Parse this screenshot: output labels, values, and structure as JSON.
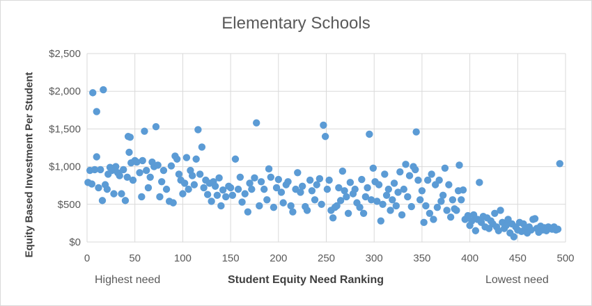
{
  "chart_data": {
    "type": "scatter",
    "title": "Elementary Schools",
    "xlabel": "Student Equity Need Ranking",
    "ylabel": "Equity Based Investment Per Student",
    "x_notes": {
      "left": "Highest need",
      "right": "Lowest need"
    },
    "xlim": [
      0,
      500
    ],
    "ylim": [
      0,
      2500
    ],
    "x_ticks": [
      0,
      50,
      100,
      150,
      200,
      250,
      300,
      350,
      400,
      450,
      500
    ],
    "y_ticks": [
      0,
      500,
      1000,
      1500,
      2000,
      2500
    ],
    "y_tick_labels": [
      "$0",
      "$500",
      "$1,000",
      "$1,500",
      "$2,000",
      "$2,500"
    ],
    "grid": "vertical-and-horizontal",
    "legend": "none",
    "marker_color": "#5b9bd5",
    "series": [
      {
        "points": [
          [
            1,
            790
          ],
          [
            3,
            950
          ],
          [
            5,
            770
          ],
          [
            6,
            1980
          ],
          [
            8,
            960
          ],
          [
            10,
            1730
          ],
          [
            10,
            1130
          ],
          [
            12,
            720
          ],
          [
            14,
            960
          ],
          [
            16,
            550
          ],
          [
            17,
            2020
          ],
          [
            19,
            760
          ],
          [
            21,
            700
          ],
          [
            22,
            900
          ],
          [
            24,
            990
          ],
          [
            26,
            950
          ],
          [
            28,
            640
          ],
          [
            30,
            1000
          ],
          [
            32,
            920
          ],
          [
            34,
            880
          ],
          [
            36,
            640
          ],
          [
            38,
            960
          ],
          [
            40,
            550
          ],
          [
            42,
            860
          ],
          [
            43,
            1400
          ],
          [
            44,
            1190
          ],
          [
            45,
            1390
          ],
          [
            46,
            1050
          ],
          [
            48,
            820
          ],
          [
            50,
            1080
          ],
          [
            52,
            1060
          ],
          [
            55,
            920
          ],
          [
            57,
            600
          ],
          [
            58,
            1080
          ],
          [
            60,
            1470
          ],
          [
            62,
            950
          ],
          [
            64,
            720
          ],
          [
            66,
            860
          ],
          [
            68,
            1060
          ],
          [
            70,
            1000
          ],
          [
            72,
            1530
          ],
          [
            74,
            1020
          ],
          [
            76,
            600
          ],
          [
            78,
            800
          ],
          [
            80,
            950
          ],
          [
            83,
            700
          ],
          [
            86,
            540
          ],
          [
            88,
            1010
          ],
          [
            90,
            520
          ],
          [
            92,
            1140
          ],
          [
            94,
            1100
          ],
          [
            96,
            900
          ],
          [
            98,
            820
          ],
          [
            100,
            640
          ],
          [
            102,
            780
          ],
          [
            104,
            1120
          ],
          [
            106,
            700
          ],
          [
            108,
            950
          ],
          [
            110,
            880
          ],
          [
            112,
            760
          ],
          [
            114,
            1100
          ],
          [
            116,
            1490
          ],
          [
            118,
            900
          ],
          [
            120,
            1260
          ],
          [
            122,
            720
          ],
          [
            124,
            820
          ],
          [
            126,
            630
          ],
          [
            128,
            780
          ],
          [
            130,
            540
          ],
          [
            132,
            800
          ],
          [
            134,
            740
          ],
          [
            136,
            620
          ],
          [
            138,
            850
          ],
          [
            140,
            480
          ],
          [
            142,
            690
          ],
          [
            145,
            600
          ],
          [
            148,
            740
          ],
          [
            150,
            720
          ],
          [
            152,
            620
          ],
          [
            155,
            1100
          ],
          [
            158,
            700
          ],
          [
            160,
            860
          ],
          [
            162,
            530
          ],
          [
            165,
            640
          ],
          [
            168,
            400
          ],
          [
            170,
            780
          ],
          [
            172,
            700
          ],
          [
            175,
            850
          ],
          [
            177,
            1580
          ],
          [
            180,
            480
          ],
          [
            182,
            800
          ],
          [
            185,
            700
          ],
          [
            188,
            560
          ],
          [
            190,
            970
          ],
          [
            192,
            860
          ],
          [
            195,
            460
          ],
          [
            198,
            720
          ],
          [
            200,
            830
          ],
          [
            203,
            660
          ],
          [
            205,
            520
          ],
          [
            208,
            760
          ],
          [
            210,
            800
          ],
          [
            213,
            480
          ],
          [
            215,
            400
          ],
          [
            218,
            700
          ],
          [
            220,
            920
          ],
          [
            223,
            660
          ],
          [
            225,
            740
          ],
          [
            228,
            470
          ],
          [
            230,
            420
          ],
          [
            233,
            820
          ],
          [
            235,
            680
          ],
          [
            238,
            560
          ],
          [
            240,
            760
          ],
          [
            243,
            840
          ],
          [
            245,
            500
          ],
          [
            247,
            1550
          ],
          [
            249,
            1400
          ],
          [
            251,
            700
          ],
          [
            253,
            820
          ],
          [
            255,
            420
          ],
          [
            257,
            320
          ],
          [
            259,
            460
          ],
          [
            261,
            480
          ],
          [
            263,
            720
          ],
          [
            265,
            550
          ],
          [
            267,
            940
          ],
          [
            269,
            680
          ],
          [
            271,
            600
          ],
          [
            273,
            380
          ],
          [
            275,
            790
          ],
          [
            278,
            640
          ],
          [
            280,
            700
          ],
          [
            282,
            520
          ],
          [
            285,
            460
          ],
          [
            287,
            830
          ],
          [
            289,
            380
          ],
          [
            291,
            600
          ],
          [
            293,
            720
          ],
          [
            295,
            1430
          ],
          [
            297,
            560
          ],
          [
            299,
            980
          ],
          [
            301,
            800
          ],
          [
            303,
            540
          ],
          [
            305,
            760
          ],
          [
            307,
            280
          ],
          [
            309,
            500
          ],
          [
            311,
            900
          ],
          [
            313,
            620
          ],
          [
            315,
            700
          ],
          [
            317,
            420
          ],
          [
            319,
            560
          ],
          [
            321,
            780
          ],
          [
            323,
            480
          ],
          [
            325,
            660
          ],
          [
            327,
            930
          ],
          [
            329,
            360
          ],
          [
            331,
            700
          ],
          [
            333,
            1030
          ],
          [
            335,
            600
          ],
          [
            337,
            880
          ],
          [
            339,
            470
          ],
          [
            341,
            1000
          ],
          [
            343,
            960
          ],
          [
            344,
            1460
          ],
          [
            346,
            820
          ],
          [
            348,
            560
          ],
          [
            350,
            680
          ],
          [
            352,
            260
          ],
          [
            354,
            480
          ],
          [
            356,
            820
          ],
          [
            358,
            380
          ],
          [
            360,
            900
          ],
          [
            362,
            300
          ],
          [
            364,
            760
          ],
          [
            366,
            460
          ],
          [
            368,
            820
          ],
          [
            370,
            540
          ],
          [
            372,
            620
          ],
          [
            374,
            980
          ],
          [
            376,
            420
          ],
          [
            378,
            760
          ],
          [
            380,
            330
          ],
          [
            382,
            560
          ],
          [
            384,
            440
          ],
          [
            386,
            420
          ],
          [
            388,
            680
          ],
          [
            389,
            1020
          ],
          [
            391,
            560
          ],
          [
            393,
            690
          ],
          [
            395,
            300
          ],
          [
            398,
            350
          ],
          [
            400,
            220
          ],
          [
            402,
            280
          ],
          [
            404,
            360
          ],
          [
            406,
            150
          ],
          [
            408,
            300
          ],
          [
            410,
            790
          ],
          [
            412,
            260
          ],
          [
            414,
            340
          ],
          [
            416,
            200
          ],
          [
            418,
            320
          ],
          [
            420,
            180
          ],
          [
            422,
            280
          ],
          [
            424,
            240
          ],
          [
            426,
            380
          ],
          [
            428,
            200
          ],
          [
            430,
            150
          ],
          [
            432,
            420
          ],
          [
            434,
            260
          ],
          [
            436,
            180
          ],
          [
            438,
            220
          ],
          [
            440,
            300
          ],
          [
            442,
            120
          ],
          [
            444,
            240
          ],
          [
            446,
            70
          ],
          [
            448,
            200
          ],
          [
            450,
            160
          ],
          [
            452,
            260
          ],
          [
            454,
            140
          ],
          [
            456,
            240
          ],
          [
            458,
            180
          ],
          [
            460,
            120
          ],
          [
            462,
            200
          ],
          [
            464,
            160
          ],
          [
            466,
            300
          ],
          [
            468,
            310
          ],
          [
            470,
            180
          ],
          [
            472,
            130
          ],
          [
            474,
            210
          ],
          [
            476,
            160
          ],
          [
            478,
            190
          ],
          [
            480,
            150
          ],
          [
            482,
            200
          ],
          [
            484,
            180
          ],
          [
            486,
            170
          ],
          [
            488,
            200
          ],
          [
            490,
            160
          ],
          [
            492,
            170
          ],
          [
            494,
            1040
          ]
        ]
      }
    ]
  }
}
